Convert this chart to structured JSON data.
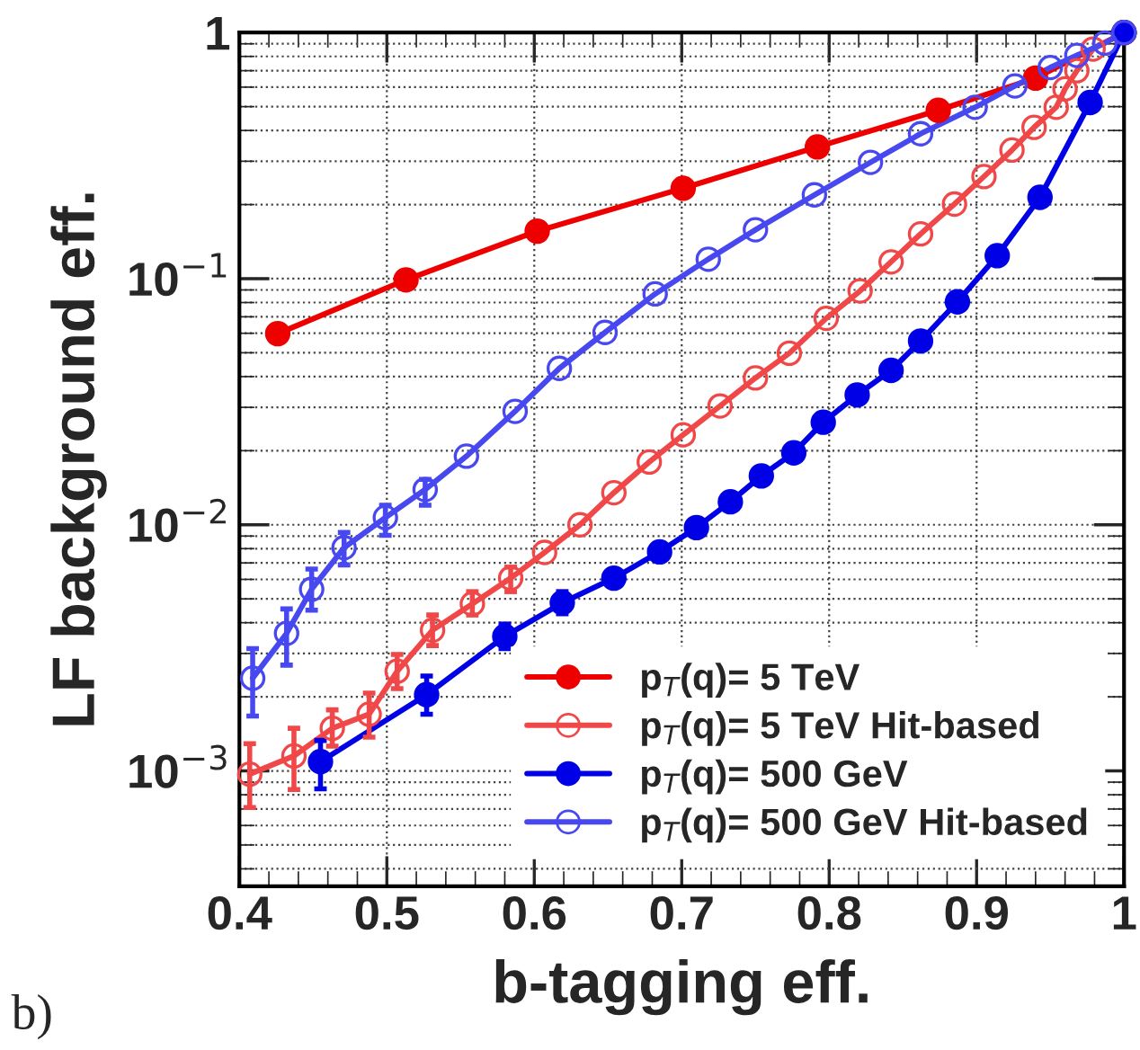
{
  "chart_data": {
    "type": "line",
    "xlabel": "b-tagging eff.",
    "ylabel": "LF background eff.",
    "log": "y",
    "grid": true,
    "legend": "bottom right",
    "line_style": "solid",
    "xlim": [
      0.4,
      1.0
    ],
    "xticks": [
      0.4,
      0.5,
      0.6,
      0.7,
      0.8,
      0.9,
      1
    ],
    "ylim": [
      0.00034,
      1.0
    ],
    "yticks": [
      {
        "value": 0.001,
        "label": "10$^{−3}$"
      },
      {
        "value": 0.01,
        "label": "10$^{−2}$"
      },
      {
        "value": 0.1,
        "label": "10$^{−1}$"
      },
      1
    ],
    "annotations": [
      "b)"
    ],
    "series": [
      {
        "name": "p$_{T}$(q)= 5 TeV",
        "color": "#ee0000",
        "marker": "circle",
        "x": [
          0.426,
          0.513,
          0.602,
          0.701,
          0.792,
          0.874,
          0.94,
          1.0
        ],
        "values": [
          0.0598,
          0.0989,
          0.156,
          0.233,
          0.343,
          0.483,
          0.653,
          1.0
        ]
      },
      {
        "name": "p$_{T}$(q)= 5 TeV Hit-based",
        "color": "#f04848",
        "marker": "open circle",
        "x": [
          0.407,
          0.437,
          0.463,
          0.488,
          0.507,
          0.531,
          0.558,
          0.584,
          0.607,
          0.631,
          0.654,
          0.678,
          0.701,
          0.726,
          0.75,
          0.773,
          0.798,
          0.821,
          0.842,
          0.862,
          0.885,
          0.905,
          0.924,
          0.939,
          0.954,
          0.96,
          0.968,
          0.979,
          1.0
        ],
        "values": [
          0.00097,
          0.00115,
          0.00149,
          0.0017,
          0.00254,
          0.00373,
          0.00477,
          0.00607,
          0.00772,
          0.01,
          0.0135,
          0.018,
          0.0232,
          0.0304,
          0.0395,
          0.0498,
          0.069,
          0.0892,
          0.117,
          0.152,
          0.201,
          0.26,
          0.333,
          0.412,
          0.497,
          0.59,
          0.7,
          0.857,
          1.0
        ],
        "errors": [
          [
            0.00071,
            0.00129
          ],
          [
            0.00084,
            0.00149
          ],
          [
            0.00126,
            0.00177
          ],
          [
            0.00137,
            0.00207
          ],
          [
            0.00216,
            0.00297
          ],
          [
            0.00323,
            0.0043
          ],
          [
            0.0043,
            0.00535
          ],
          [
            0.00535,
            0.00673
          ],
          null,
          null,
          null,
          null,
          null,
          null,
          null,
          null,
          null,
          null,
          null,
          null,
          null,
          null,
          null,
          null,
          null,
          null,
          null,
          null,
          null
        ]
      },
      {
        "name": "p$_{T}$(q)= 500 GeV",
        "color": "#0000e6",
        "marker": "circle",
        "x": [
          0.455,
          0.527,
          0.58,
          0.619,
          0.654,
          0.685,
          0.71,
          0.733,
          0.754,
          0.776,
          0.796,
          0.819,
          0.842,
          0.862,
          0.887,
          0.914,
          0.943,
          0.977,
          1.0
        ],
        "values": [
          0.00109,
          0.00204,
          0.00352,
          0.00482,
          0.00607,
          0.00776,
          0.00974,
          0.0124,
          0.0158,
          0.0196,
          0.0261,
          0.0337,
          0.0424,
          0.0558,
          0.0805,
          0.124,
          0.214,
          0.52,
          1.0
        ],
        "errors": [
          [
            0.000845,
            0.00133
          ],
          [
            0.0017,
            0.00243
          ],
          [
            0.00314,
            0.00395
          ],
          [
            0.00435,
            0.00535
          ],
          null,
          null,
          null,
          null,
          null,
          null,
          null,
          null,
          null,
          null,
          null,
          null,
          null,
          null,
          null
        ]
      },
      {
        "name": "p$_{T}$(q)= 500 GeV Hit-based",
        "color": "#4848f0",
        "marker": "open circle",
        "x": [
          0.409,
          0.432,
          0.449,
          0.471,
          0.499,
          0.526,
          0.554,
          0.587,
          0.617,
          0.648,
          0.682,
          0.718,
          0.75,
          0.79,
          0.828,
          0.862,
          0.899,
          0.926,
          0.95,
          0.968,
          0.987,
          1.0
        ],
        "values": [
          0.00238,
          0.00362,
          0.00547,
          0.00807,
          0.0107,
          0.0139,
          0.019,
          0.0289,
          0.0432,
          0.0605,
          0.0867,
          0.12,
          0.158,
          0.219,
          0.297,
          0.388,
          0.497,
          0.607,
          0.721,
          0.808,
          0.906,
          1.0
        ],
        "errors": [
          [
            0.00167,
            0.00314
          ],
          [
            0.00269,
            0.00455
          ],
          [
            0.0045,
            0.00661
          ],
          [
            0.00687,
            0.00931
          ],
          [
            0.00906,
            0.012
          ],
          [
            0.012,
            0.0153
          ],
          null,
          null,
          null,
          null,
          null,
          null,
          null,
          null,
          null,
          null,
          null,
          null,
          null,
          null,
          null,
          null
        ]
      }
    ]
  }
}
